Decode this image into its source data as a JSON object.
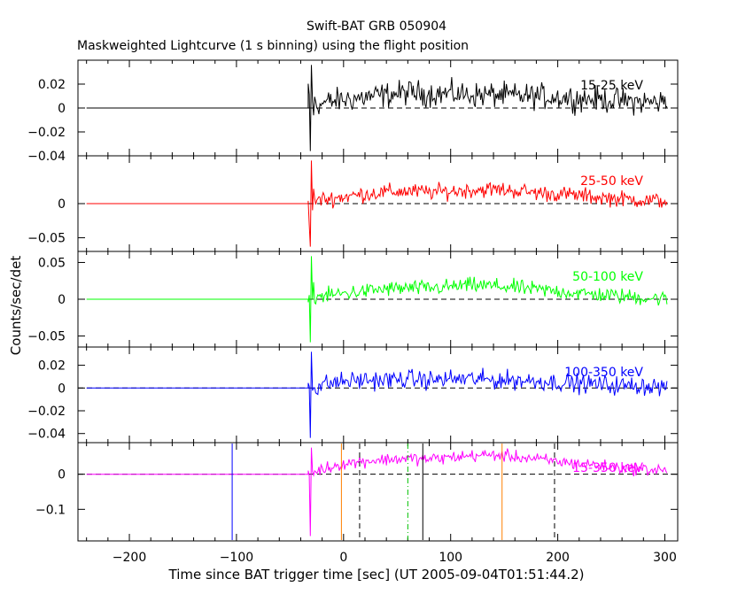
{
  "chart_data": {
    "type": "line",
    "title": "Swift-BAT GRB 050904",
    "subtitle": "Maskweighted Lightcurve (1 s binning) using the flight position",
    "xlabel": "Time since BAT trigger time [sec] (UT 2005-09-04T01:51:44.2)",
    "ylabel": "Counts/sec/det",
    "xlim": [
      -248,
      312
    ],
    "xticks": [
      -200,
      -100,
      0,
      100,
      200,
      300
    ],
    "trigger_time": -33,
    "panels": [
      {
        "band": "15-25 keV",
        "color": "#000000",
        "ylim": [
          -0.04,
          0.04
        ],
        "yticks": [
          -0.04,
          -0.02,
          0,
          0.02
        ],
        "ytick_labels": [
          "−0.04",
          "−0.02",
          "0",
          "0.02"
        ],
        "series": [
          {
            "x": [
              -33,
              -20,
              0,
              20,
              40,
              60,
              80,
              100,
              120,
              140,
              160,
              180,
              200,
              220,
              240,
              260,
              280,
              300
            ],
            "y": [
              0,
              0.004,
              0.007,
              0.009,
              0.011,
              0.013,
              0.012,
              0.012,
              0.011,
              0.011,
              0.01,
              0.01,
              0.009,
              0.008,
              0.007,
              0.006,
              0.005,
              0.005
            ]
          }
        ],
        "noise": 0.009
      },
      {
        "band": "25-50 keV",
        "color": "#ff0000",
        "ylim": [
          -0.07,
          0.07
        ],
        "yticks": [
          -0.05,
          0
        ],
        "ytick_labels": [
          "−0.05",
          "0"
        ],
        "series": [
          {
            "x": [
              -33,
              -20,
              0,
              20,
              40,
              60,
              80,
              100,
              120,
              140,
              160,
              180,
              200,
              220,
              240,
              260,
              280,
              300
            ],
            "y": [
              0,
              0.006,
              0.01,
              0.014,
              0.017,
              0.018,
              0.017,
              0.018,
              0.02,
              0.021,
              0.019,
              0.016,
              0.014,
              0.012,
              0.009,
              0.007,
              0.005,
              0.004
            ]
          }
        ],
        "noise": 0.01
      },
      {
        "band": "50-100 keV",
        "color": "#00ff00",
        "ylim": [
          -0.065,
          0.065
        ],
        "yticks": [
          -0.05,
          0,
          0.05
        ],
        "ytick_labels": [
          "−0.05",
          "0",
          "0.05"
        ],
        "series": [
          {
            "x": [
              -33,
              -20,
              0,
              20,
              40,
              60,
              80,
              100,
              120,
              140,
              160,
              180,
              200,
              220,
              240,
              260,
              280,
              300
            ],
            "y": [
              0,
              0.004,
              0.008,
              0.011,
              0.014,
              0.015,
              0.015,
              0.017,
              0.019,
              0.018,
              0.016,
              0.013,
              0.011,
              0.008,
              0.006,
              0.004,
              0.002,
              0.001
            ]
          }
        ],
        "noise": 0.009
      },
      {
        "band": "100-350 keV",
        "color": "#0000ff",
        "ylim": [
          -0.048,
          0.036
        ],
        "yticks": [
          -0.04,
          -0.02,
          0,
          0.02
        ],
        "ytick_labels": [
          "−0.04",
          "−0.02",
          "0",
          "0.02"
        ],
        "series": [
          {
            "x": [
              -33,
              -20,
              0,
              20,
              40,
              60,
              80,
              100,
              120,
              140,
              160,
              180,
              200,
              220,
              240,
              260,
              280,
              300
            ],
            "y": [
              0,
              0.003,
              0.006,
              0.007,
              0.007,
              0.008,
              0.007,
              0.008,
              0.008,
              0.007,
              0.007,
              0.006,
              0.005,
              0.004,
              0.003,
              0.002,
              0.002,
              0.001
            ]
          }
        ],
        "noise": 0.007
      },
      {
        "band": "15-350 keV",
        "color": "#ff00ff",
        "ylim": [
          -0.19,
          0.09
        ],
        "yticks": [
          -0.1,
          0
        ],
        "ytick_labels": [
          "−0.1",
          "0"
        ],
        "series": [
          {
            "x": [
              -33,
              -20,
              0,
              20,
              40,
              60,
              80,
              100,
              120,
              140,
              160,
              180,
              200,
              220,
              240,
              260,
              280,
              300
            ],
            "y": [
              0,
              0.015,
              0.03,
              0.038,
              0.042,
              0.045,
              0.043,
              0.048,
              0.053,
              0.055,
              0.05,
              0.043,
              0.036,
              0.03,
              0.024,
              0.018,
              0.014,
              0.012
            ]
          }
        ],
        "noise": 0.015,
        "markers": [
          {
            "x": -104,
            "color": "#0000ff",
            "style": "solid"
          },
          {
            "x": -2,
            "color": "#ff8000",
            "style": "solid"
          },
          {
            "x": 15,
            "color": "#000000",
            "style": "dashed"
          },
          {
            "x": 60,
            "color": "#00c000",
            "style": "dashdot"
          },
          {
            "x": 74,
            "color": "#000000",
            "style": "solid"
          },
          {
            "x": 148,
            "color": "#ff8000",
            "style": "solid"
          },
          {
            "x": 197,
            "color": "#000000",
            "style": "dashed"
          }
        ]
      }
    ]
  }
}
